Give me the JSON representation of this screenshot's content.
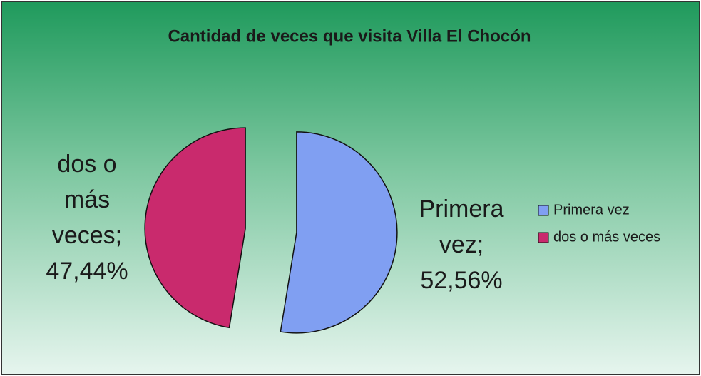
{
  "chart_data": {
    "type": "pie",
    "title": "Cantidad de veces que visita Villa El Chocón",
    "categories": [
      "Primera vez",
      "dos o más veces"
    ],
    "values": [
      52.56,
      47.44
    ],
    "value_labels": [
      "Primera vez; 52,56%",
      "dos o más veces; 47,44%"
    ],
    "colors": [
      "#809ff2",
      "#c92a6d"
    ],
    "legend": "right"
  }
}
